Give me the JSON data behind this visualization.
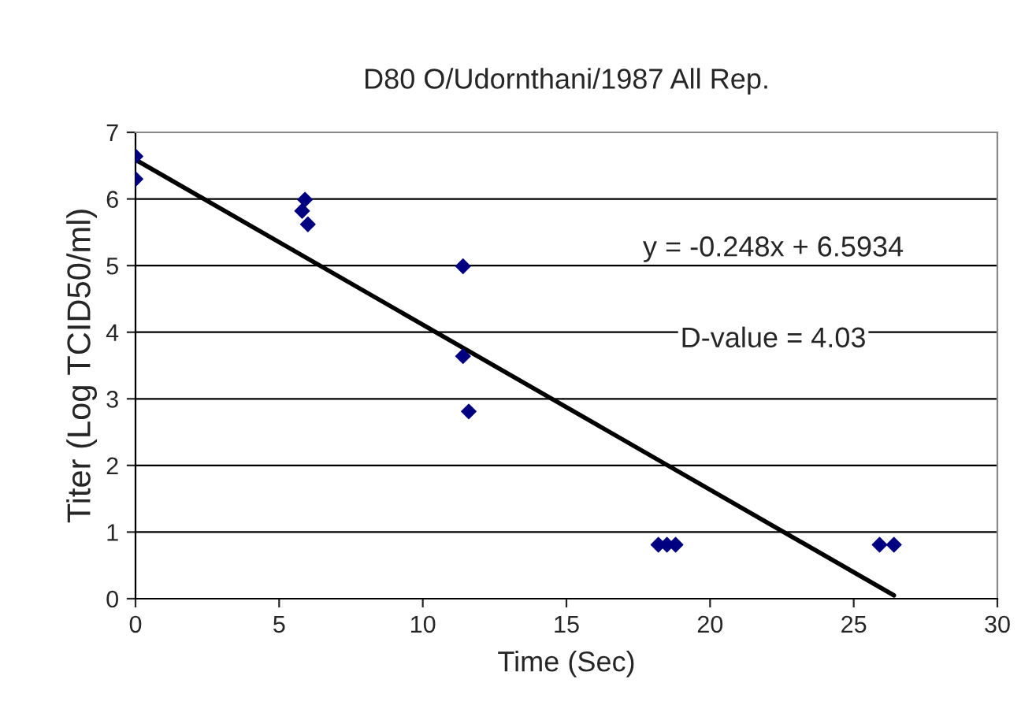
{
  "chart_data": {
    "type": "scatter",
    "title": "D80 O/Udornthani/1987 All Rep.",
    "xlabel": "Time (Sec)",
    "ylabel": "Titer (Log TCID50/ml)",
    "series": [
      {
        "color": "#000080",
        "marker": "diamond",
        "x": [
          0,
          0,
          5.9,
          5.8,
          6.0,
          11.4,
          11.4,
          11.6,
          18.2,
          18.5,
          18.8,
          25.9,
          26.3,
          26.4
        ],
        "values": [
          6.64,
          6.3,
          5.99,
          5.82,
          5.62,
          4.99,
          3.64,
          2.81,
          0.81,
          0.81,
          0.81,
          0.81,
          null,
          0.81
        ]
      },
      {
        "type": "line",
        "color": "#000000",
        "marker": "none",
        "line_style": "solid",
        "x": [
          0,
          26.4
        ],
        "values": [
          6.59,
          0.05
        ]
      }
    ],
    "annotations": [
      "y = -0.248x + 6.5934",
      "D-value = 4.03"
    ],
    "xlim": [
      0,
      30
    ],
    "xticks": [
      0,
      5,
      10,
      15,
      20,
      25,
      30
    ],
    "ylim": [
      0,
      7
    ],
    "yticks": [
      0,
      1,
      2,
      3,
      4,
      5,
      6,
      7
    ],
    "grid": "y"
  }
}
